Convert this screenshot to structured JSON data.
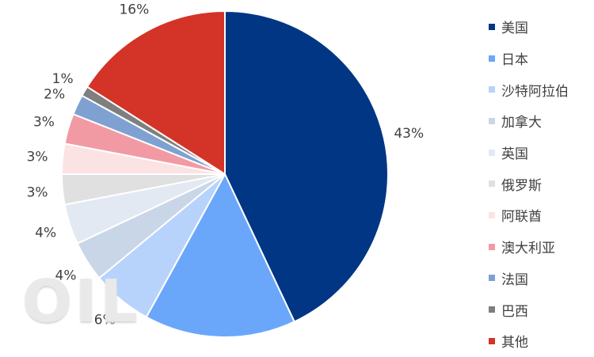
{
  "chart_data": {
    "type": "pie",
    "title": "",
    "slices": [
      {
        "label": "美国",
        "value": 43,
        "value_label": "43%",
        "color": "#003684"
      },
      {
        "label": "日本",
        "value": 15,
        "value_label": "15%",
        "color": "#6aa7fb"
      },
      {
        "label": "沙特阿拉伯",
        "value": 6,
        "value_label": "6%",
        "color": "#b8d3fb"
      },
      {
        "label": "加拿大",
        "value": 4,
        "value_label": "4%",
        "color": "#c9d6e8"
      },
      {
        "label": "英国",
        "value": 4,
        "value_label": "4%",
        "color": "#e3e9f2"
      },
      {
        "label": "俄罗斯",
        "value": 3,
        "value_label": "3%",
        "color": "#e0e0e0"
      },
      {
        "label": "阿联酋",
        "value": 3,
        "value_label": "3%",
        "color": "#fbe3e3"
      },
      {
        "label": "澳大利亚",
        "value": 3,
        "value_label": "3%",
        "color": "#f29aa3"
      },
      {
        "label": "法国",
        "value": 2,
        "value_label": "2%",
        "color": "#7ea1d2"
      },
      {
        "label": "巴西",
        "value": 1,
        "value_label": "1%",
        "color": "#7f7f7f"
      },
      {
        "label": "其他",
        "value": 16,
        "value_label": "16%",
        "color": "#d33427"
      }
    ],
    "legend_placement": "right"
  },
  "watermark": "OIL"
}
